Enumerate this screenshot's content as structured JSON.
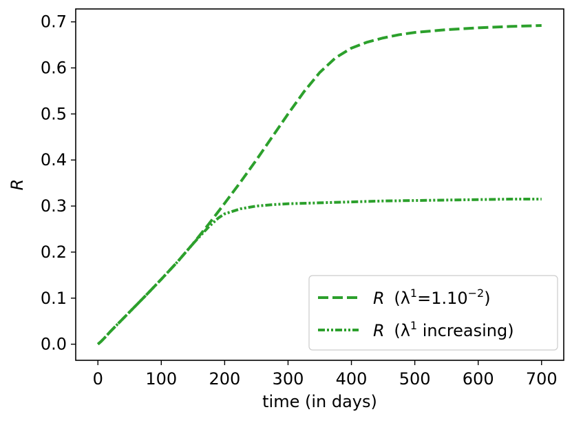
{
  "chart_data": {
    "type": "line",
    "xlabel": "time (in days)",
    "ylabel": "R",
    "xlim": [
      -35,
      735
    ],
    "ylim": [
      -0.035,
      0.728
    ],
    "xticks": [
      0,
      100,
      200,
      300,
      400,
      500,
      600,
      700
    ],
    "yticks": [
      0.0,
      0.1,
      0.2,
      0.3,
      0.4,
      0.5,
      0.6,
      0.7
    ],
    "xtick_labels": [
      "0",
      "100",
      "200",
      "300",
      "400",
      "500",
      "600",
      "700"
    ],
    "ytick_labels": [
      "0.0",
      "0.1",
      "0.2",
      "0.3",
      "0.4",
      "0.5",
      "0.6",
      "0.7"
    ],
    "grid": false,
    "legend_position": "bottom-right",
    "series": [
      {
        "name": "R (λ¹=1.10⁻²)",
        "legend_main": "R",
        "legend_pre": "(λ",
        "legend_sup1": "1",
        "legend_mid": "=1.10",
        "legend_sup2": "−2",
        "legend_post": ")",
        "color": "#2ca02c",
        "style": "dashed",
        "x": [
          0,
          5,
          10,
          20,
          30,
          50,
          75,
          100,
          125,
          150,
          175,
          200,
          225,
          250,
          275,
          300,
          325,
          350,
          375,
          400,
          425,
          450,
          475,
          500,
          550,
          600,
          650,
          700
        ],
        "y": [
          0.0,
          0.006,
          0.013,
          0.028,
          0.042,
          0.07,
          0.105,
          0.141,
          0.178,
          0.218,
          0.261,
          0.306,
          0.352,
          0.4,
          0.45,
          0.5,
          0.548,
          0.59,
          0.622,
          0.643,
          0.656,
          0.665,
          0.672,
          0.677,
          0.683,
          0.687,
          0.69,
          0.692
        ]
      },
      {
        "name": "R (λ¹ increasing)",
        "legend_main": "R",
        "legend_pre": "(λ",
        "legend_sup1": "1",
        "legend_mid": " increasing)",
        "legend_sup2": "",
        "legend_post": "",
        "color": "#2ca02c",
        "style": "dashdotdot",
        "x": [
          0,
          5,
          10,
          20,
          30,
          50,
          75,
          100,
          125,
          150,
          160,
          175,
          190,
          200,
          225,
          250,
          275,
          300,
          350,
          400,
          450,
          500,
          550,
          600,
          650,
          700
        ],
        "y": [
          0.0,
          0.006,
          0.013,
          0.028,
          0.042,
          0.07,
          0.105,
          0.141,
          0.178,
          0.218,
          0.233,
          0.255,
          0.274,
          0.283,
          0.294,
          0.3,
          0.303,
          0.305,
          0.307,
          0.309,
          0.311,
          0.312,
          0.313,
          0.314,
          0.315,
          0.315
        ]
      }
    ]
  }
}
